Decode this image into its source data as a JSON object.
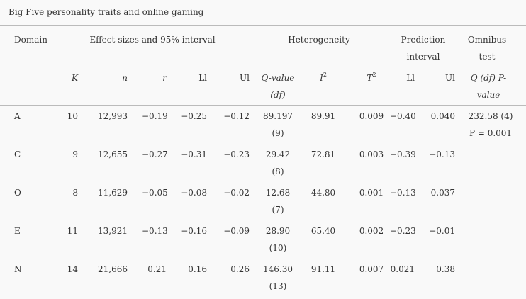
{
  "title": "Big Five personality traits and online gaming",
  "table": {
    "group_headers": [
      "Domain",
      "Effect-sizes and 95% interval",
      "Heterogeneity",
      "Prediction interval",
      "Omnibus test"
    ],
    "column_headers": [
      "K",
      "n",
      "r",
      "Ll",
      "Ul",
      "Q-value (df)",
      {
        "text": "I",
        "sup": "2"
      },
      {
        "text": "T",
        "sup": "2"
      },
      "Ll",
      "Ul",
      "Q (df) P-value"
    ],
    "rows": [
      {
        "domain": "A",
        "k": "10",
        "n": "12,993",
        "r": "−0.19",
        "ll": "−0.25",
        "ul": "−0.12",
        "q": "89.197",
        "df": "(9)",
        "i2": "89.91",
        "t2": "0.009",
        "pll": "−0.40",
        "pul": "0.040",
        "omnibus_q": "232.58 (4)",
        "omnibus_p": "P = 0.001"
      },
      {
        "domain": "C",
        "k": "9",
        "n": "12,655",
        "r": "−0.27",
        "ll": "−0.31",
        "ul": "−0.23",
        "q": "29.42",
        "df": "(8)",
        "i2": "72.81",
        "t2": "0.003",
        "pll": "−0.39",
        "pul": "−0.13"
      },
      {
        "domain": "O",
        "k": "8",
        "n": "11,629",
        "r": "−0.05",
        "ll": "−0.08",
        "ul": "−0.02",
        "q": "12.68",
        "df": "(7)",
        "i2": "44.80",
        "t2": "0.001",
        "pll": "−0.13",
        "pul": "0.037"
      },
      {
        "domain": "E",
        "k": "11",
        "n": "13,921",
        "r": "−0.13",
        "ll": "−0.16",
        "ul": "−0.09",
        "q": "28.90",
        "df": "(10)",
        "i2": "65.40",
        "t2": "0.002",
        "pll": "−0.23",
        "pul": "−0.01"
      },
      {
        "domain": "N",
        "k": "14",
        "n": "21,666",
        "r": "0.21",
        "ll": "0.16",
        "ul": "0.26",
        "q": "146.30",
        "df": "(13)",
        "i2": "91.11",
        "t2": "0.007",
        "pll": "0.021",
        "pul": "0.38"
      }
    ]
  }
}
